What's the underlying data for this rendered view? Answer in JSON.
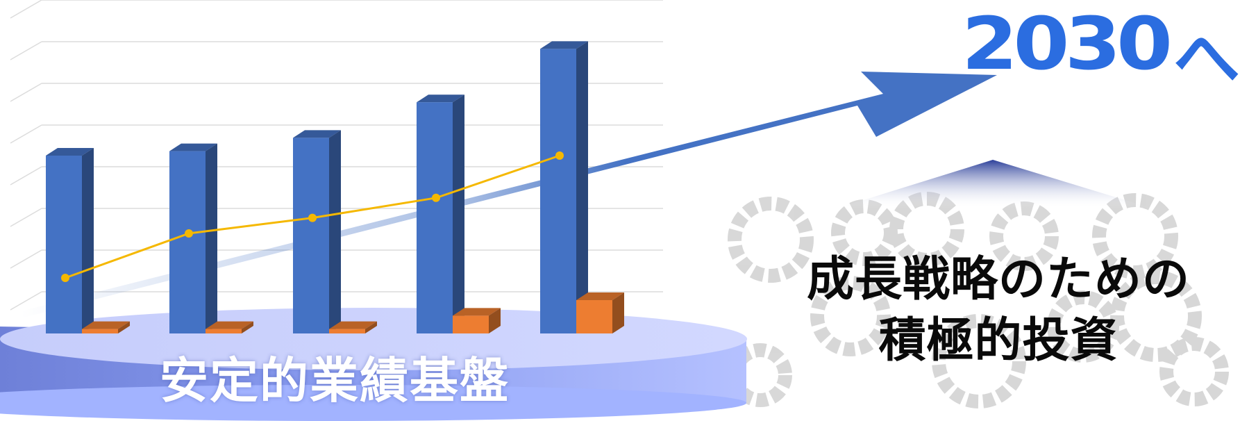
{
  "chart_data": {
    "type": "bar",
    "categories": [
      "",
      "",
      "",
      "",
      ""
    ],
    "series": [
      {
        "values": [
          80,
          82,
          88,
          104,
          128
        ],
        "color": "#4472c4"
      },
      {
        "values": [
          2,
          2,
          2,
          8,
          15
        ],
        "color": "#ed7d31"
      },
      {
        "values": [
          25,
          45,
          52,
          61,
          80
        ],
        "color": "#f5b800",
        "kind": "line"
      }
    ],
    "ylim": [
      0,
      150
    ],
    "grid": true,
    "title": "",
    "xlabel": "",
    "ylabel": ""
  },
  "labels": {
    "target_year": "2030",
    "target_suffix": "へ",
    "base": "安定的業績基盤",
    "investment_line1": "成長戦略のための",
    "investment_line2": "積極的投資"
  },
  "colors": {
    "accent_blue": "#4472c4",
    "accent_orange": "#ed7d31",
    "line_yellow": "#f5b800",
    "platform": "#a6b6ff",
    "title_blue": "#2b6de0"
  },
  "icons": {
    "background": "gears-icon"
  }
}
